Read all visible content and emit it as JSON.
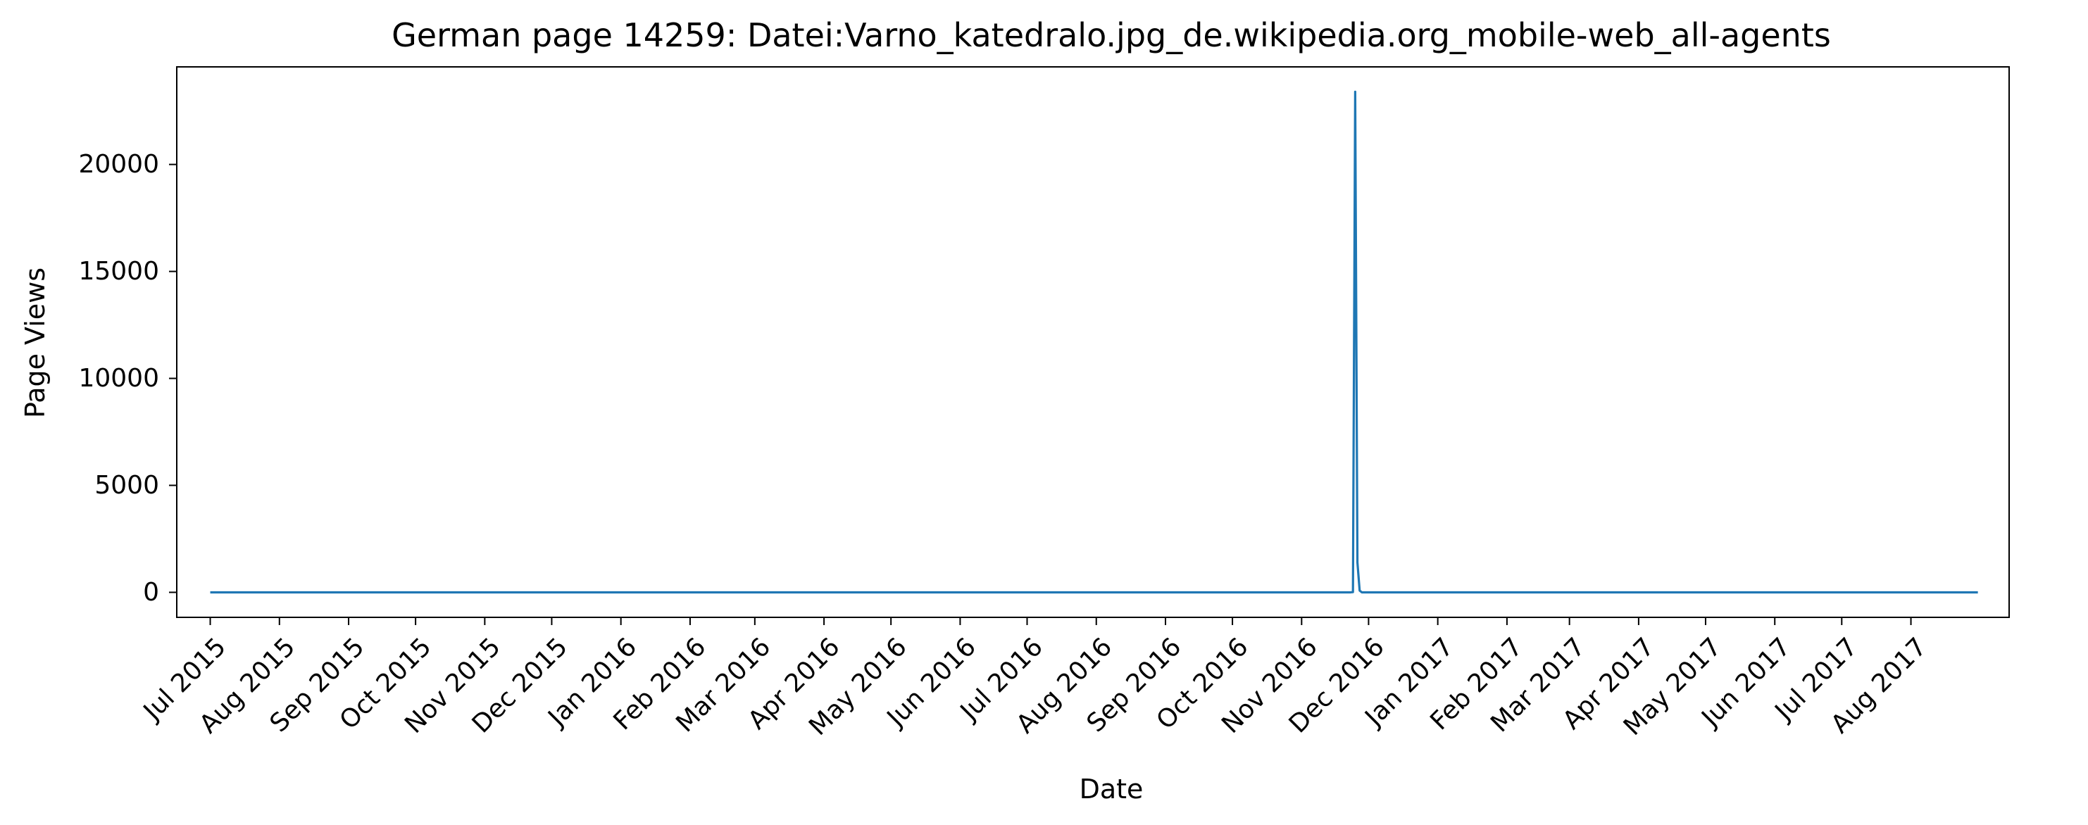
{
  "chart_data": {
    "type": "line",
    "title": "German page 14259: Datei:Varno_katedralo.jpg_de.wikipedia.org_mobile-web_all-agents",
    "xlabel": "Date",
    "ylabel": "Page Views",
    "x_range": [
      "2015-06-16",
      "2017-09-14"
    ],
    "ylim": [
      -1169,
      24561
    ],
    "grid": false,
    "legend": "none",
    "x_ticks": [
      {
        "date": "2015-07-01",
        "label": "Jul 2015"
      },
      {
        "date": "2015-08-01",
        "label": "Aug 2015"
      },
      {
        "date": "2015-09-01",
        "label": "Sep 2015"
      },
      {
        "date": "2015-10-01",
        "label": "Oct 2015"
      },
      {
        "date": "2015-11-01",
        "label": "Nov 2015"
      },
      {
        "date": "2015-12-01",
        "label": "Dec 2015"
      },
      {
        "date": "2016-01-01",
        "label": "Jan 2016"
      },
      {
        "date": "2016-02-01",
        "label": "Feb 2016"
      },
      {
        "date": "2016-03-01",
        "label": "Mar 2016"
      },
      {
        "date": "2016-04-01",
        "label": "Apr 2016"
      },
      {
        "date": "2016-05-01",
        "label": "May 2016"
      },
      {
        "date": "2016-06-01",
        "label": "Jun 2016"
      },
      {
        "date": "2016-07-01",
        "label": "Jul 2016"
      },
      {
        "date": "2016-08-01",
        "label": "Aug 2016"
      },
      {
        "date": "2016-09-01",
        "label": "Sep 2016"
      },
      {
        "date": "2016-10-01",
        "label": "Oct 2016"
      },
      {
        "date": "2016-11-01",
        "label": "Nov 2016"
      },
      {
        "date": "2016-12-01",
        "label": "Dec 2016"
      },
      {
        "date": "2017-01-01",
        "label": "Jan 2017"
      },
      {
        "date": "2017-02-01",
        "label": "Feb 2017"
      },
      {
        "date": "2017-03-01",
        "label": "Mar 2017"
      },
      {
        "date": "2017-04-01",
        "label": "Apr 2017"
      },
      {
        "date": "2017-05-01",
        "label": "May 2017"
      },
      {
        "date": "2017-06-01",
        "label": "Jun 2017"
      },
      {
        "date": "2017-07-01",
        "label": "Jul 2017"
      },
      {
        "date": "2017-08-01",
        "label": "Aug 2017"
      }
    ],
    "y_ticks": [
      {
        "value": 0,
        "label": "0"
      },
      {
        "value": 5000,
        "label": "5000"
      },
      {
        "value": 10000,
        "label": "10000"
      },
      {
        "value": 15000,
        "label": "15000"
      },
      {
        "value": 20000,
        "label": "20000"
      }
    ],
    "series": [
      {
        "color": "#1f77b4",
        "points": [
          {
            "x": "2015-07-01",
            "y": 0
          },
          {
            "x": "2016-11-23",
            "y": 0
          },
          {
            "x": "2016-11-24",
            "y": 12
          },
          {
            "x": "2016-11-25",
            "y": 23400
          },
          {
            "x": "2016-11-26",
            "y": 1400
          },
          {
            "x": "2016-11-27",
            "y": 80
          },
          {
            "x": "2016-11-28",
            "y": 0
          },
          {
            "x": "2017-08-31",
            "y": 0
          }
        ]
      }
    ]
  }
}
